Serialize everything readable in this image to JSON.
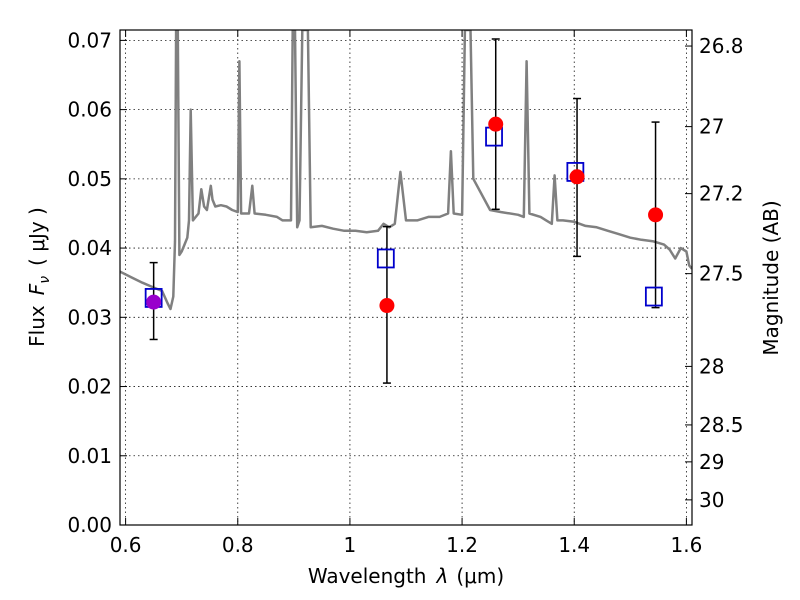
{
  "chart_data": {
    "type": "scatter",
    "xlabel_text": "Wavelength",
    "xlabel_var": "λ",
    "xlabel_unit": "(μm)",
    "ylabel_text": "Flux",
    "ylabel_var": "F",
    "ylabel_sub": "ν",
    "ylabel_unit": "( μJy )",
    "y2label": "Magnitude (AB)",
    "xlim": [
      0.59,
      1.61
    ],
    "ylim": [
      0.0,
      0.0715
    ],
    "x_ticks": [
      0.6,
      0.8,
      1.0,
      1.2,
      1.4,
      1.6
    ],
    "x_tick_labels": [
      "0.6",
      "0.8",
      "1",
      "1.2",
      "1.4",
      "1.6"
    ],
    "y_ticks": [
      0.0,
      0.01,
      0.02,
      0.03,
      0.04,
      0.05,
      0.06,
      0.07
    ],
    "y_tick_labels": [
      "0.00",
      "0.01",
      "0.02",
      "0.03",
      "0.04",
      "0.05",
      "0.06",
      "0.07"
    ],
    "y2_ticks": [
      26.8,
      27,
      27.2,
      27.5,
      28,
      28.5,
      29,
      30
    ],
    "y2_tick_labels": [
      "26.8",
      "27",
      "27.2",
      "27.5",
      "28",
      "28.5",
      "29",
      "30"
    ],
    "grid": true,
    "colors": {
      "model": "#808080",
      "observed": "#ff0000",
      "model_photometry": "#0000cc",
      "first_point": "#9900cc",
      "errorbar": "#000000"
    },
    "observed": [
      {
        "x": 0.65,
        "y": 0.0322,
        "yerr": [
          0.0054,
          0.0057
        ]
      },
      {
        "x": 1.066,
        "y": 0.0317,
        "yerr": [
          0.0112,
          0.0114
        ]
      },
      {
        "x": 1.26,
        "y": 0.0579,
        "yerr": [
          0.0123,
          0.0123
        ]
      },
      {
        "x": 1.405,
        "y": 0.0503,
        "yerr": [
          0.0115,
          0.0113
        ]
      },
      {
        "x": 1.545,
        "y": 0.0448,
        "yerr": [
          0.0134,
          0.0134
        ]
      }
    ],
    "model_photometry": [
      {
        "x": 0.65,
        "y": 0.0328
      },
      {
        "x": 1.064,
        "y": 0.0385
      },
      {
        "x": 1.257,
        "y": 0.0561
      },
      {
        "x": 1.402,
        "y": 0.051
      },
      {
        "x": 1.542,
        "y": 0.033
      }
    ],
    "model_spectrum": [
      [
        0.59,
        0.0366
      ],
      [
        0.61,
        0.0358
      ],
      [
        0.63,
        0.035
      ],
      [
        0.65,
        0.0343
      ],
      [
        0.665,
        0.0338
      ],
      [
        0.675,
        0.032
      ],
      [
        0.68,
        0.0312
      ],
      [
        0.685,
        0.033
      ],
      [
        0.688,
        0.041
      ],
      [
        0.69,
        0.0715
      ],
      [
        0.693,
        0.0715
      ],
      [
        0.696,
        0.039
      ],
      [
        0.7,
        0.0395
      ],
      [
        0.705,
        0.0405
      ],
      [
        0.71,
        0.0415
      ],
      [
        0.713,
        0.044
      ],
      [
        0.716,
        0.06
      ],
      [
        0.72,
        0.044
      ],
      [
        0.73,
        0.045
      ],
      [
        0.735,
        0.0485
      ],
      [
        0.74,
        0.046
      ],
      [
        0.745,
        0.0455
      ],
      [
        0.75,
        0.048
      ],
      [
        0.752,
        0.049
      ],
      [
        0.755,
        0.047
      ],
      [
        0.76,
        0.046
      ],
      [
        0.77,
        0.0462
      ],
      [
        0.78,
        0.046
      ],
      [
        0.79,
        0.0455
      ],
      [
        0.8,
        0.0452
      ],
      [
        0.803,
        0.067
      ],
      [
        0.806,
        0.045
      ],
      [
        0.82,
        0.045
      ],
      [
        0.826,
        0.049
      ],
      [
        0.83,
        0.045
      ],
      [
        0.85,
        0.0448
      ],
      [
        0.87,
        0.0445
      ],
      [
        0.88,
        0.044
      ],
      [
        0.89,
        0.044
      ],
      [
        0.895,
        0.044
      ],
      [
        0.898,
        0.0715
      ],
      [
        0.902,
        0.0715
      ],
      [
        0.906,
        0.043
      ],
      [
        0.91,
        0.044
      ],
      [
        0.915,
        0.0715
      ],
      [
        0.925,
        0.0715
      ],
      [
        0.93,
        0.043
      ],
      [
        0.95,
        0.0432
      ],
      [
        0.97,
        0.0428
      ],
      [
        0.99,
        0.0425
      ],
      [
        1.01,
        0.0425
      ],
      [
        1.03,
        0.0423
      ],
      [
        1.05,
        0.0425
      ],
      [
        1.06,
        0.0435
      ],
      [
        1.07,
        0.043
      ],
      [
        1.08,
        0.0435
      ],
      [
        1.09,
        0.051
      ],
      [
        1.1,
        0.044
      ],
      [
        1.12,
        0.044
      ],
      [
        1.14,
        0.0445
      ],
      [
        1.16,
        0.0445
      ],
      [
        1.175,
        0.045
      ],
      [
        1.18,
        0.054
      ],
      [
        1.185,
        0.045
      ],
      [
        1.2,
        0.0448
      ],
      [
        1.205,
        0.0715
      ],
      [
        1.215,
        0.0715
      ],
      [
        1.22,
        0.05
      ],
      [
        1.25,
        0.0455
      ],
      [
        1.27,
        0.0452
      ],
      [
        1.3,
        0.0448
      ],
      [
        1.31,
        0.0445
      ],
      [
        1.315,
        0.067
      ],
      [
        1.32,
        0.045
      ],
      [
        1.34,
        0.0445
      ],
      [
        1.35,
        0.044
      ],
      [
        1.36,
        0.0435
      ],
      [
        1.365,
        0.0505
      ],
      [
        1.37,
        0.044
      ],
      [
        1.38,
        0.044
      ],
      [
        1.4,
        0.0438
      ],
      [
        1.42,
        0.0432
      ],
      [
        1.44,
        0.043
      ],
      [
        1.46,
        0.0425
      ],
      [
        1.48,
        0.042
      ],
      [
        1.5,
        0.0415
      ],
      [
        1.52,
        0.0412
      ],
      [
        1.54,
        0.041
      ],
      [
        1.56,
        0.0405
      ],
      [
        1.57,
        0.0398
      ],
      [
        1.58,
        0.0385
      ],
      [
        1.59,
        0.04
      ],
      [
        1.6,
        0.0395
      ],
      [
        1.605,
        0.0375
      ],
      [
        1.61,
        0.037
      ]
    ]
  }
}
